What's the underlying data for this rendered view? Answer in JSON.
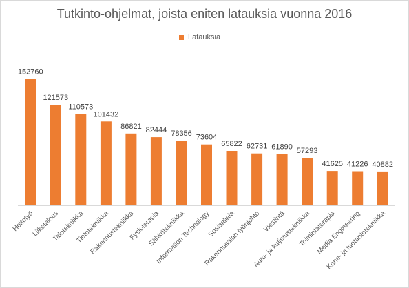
{
  "chart_data": {
    "type": "bar",
    "title": "Tutkinto-ohjelmat, joista eniten latauksia vuonna 2016",
    "xlabel": "",
    "ylabel": "",
    "categories": [
      "Hoitotyö",
      "Liiketalous",
      "Talotekniikka",
      "Tietotekniikka",
      "Rakennustekniikka",
      "Fysioterapia",
      "Sähkötekniikka",
      "Information Technology",
      "Sosiaaliala",
      "Rakennusalan työnjohto",
      "Viestintä",
      "Auto- ja kuljetustekniikka",
      "Toimintaterapia",
      "Media Engineering",
      "Kone- ja tuotantotekniikka"
    ],
    "series": [
      {
        "name": "Latauksia",
        "color": "#ed7d31",
        "values": [
          152760,
          121573,
          110573,
          101432,
          86821,
          82444,
          78356,
          73604,
          65822,
          62731,
          61890,
          57293,
          41625,
          41226,
          40882
        ]
      }
    ],
    "ylim": [
      0,
      160000
    ],
    "grid": false,
    "legend_position": "top"
  }
}
